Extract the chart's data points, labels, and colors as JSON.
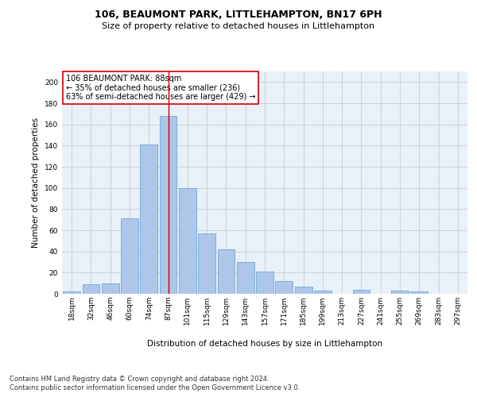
{
  "title": "106, BEAUMONT PARK, LITTLEHAMPTON, BN17 6PH",
  "subtitle": "Size of property relative to detached houses in Littlehampton",
  "xlabel": "Distribution of detached houses by size in Littlehampton",
  "ylabel": "Number of detached properties",
  "footnote1": "Contains HM Land Registry data © Crown copyright and database right 2024.",
  "footnote2": "Contains public sector information licensed under the Open Government Licence v3.0.",
  "annotation_title": "106 BEAUMONT PARK: 88sqm",
  "annotation_line2": "← 35% of detached houses are smaller (236)",
  "annotation_line3": "63% of semi-detached houses are larger (429) →",
  "bar_labels": [
    "18sqm",
    "32sqm",
    "46sqm",
    "60sqm",
    "74sqm",
    "87sqm",
    "101sqm",
    "115sqm",
    "129sqm",
    "143sqm",
    "157sqm",
    "171sqm",
    "185sqm",
    "199sqm",
    "213sqm",
    "227sqm",
    "241sqm",
    "255sqm",
    "269sqm",
    "283sqm",
    "297sqm"
  ],
  "bar_values": [
    2,
    9,
    10,
    71,
    141,
    168,
    100,
    57,
    42,
    30,
    21,
    12,
    7,
    3,
    0,
    4,
    0,
    3,
    2,
    0,
    0
  ],
  "bar_color": "#aec6e8",
  "bar_edge_color": "#5a9fd4",
  "highlight_bar_index": 5,
  "highlight_line_color": "#cc0000",
  "ylim": [
    0,
    210
  ],
  "yticks": [
    0,
    20,
    40,
    60,
    80,
    100,
    120,
    140,
    160,
    180,
    200
  ],
  "grid_color": "#cccccc",
  "bg_color": "#e8f0f8",
  "annotation_box_color": "#ffffff",
  "annotation_box_edge": "#cc0000",
  "title_fontsize": 9,
  "subtitle_fontsize": 8,
  "axis_label_fontsize": 7.5,
  "tick_fontsize": 6.5,
  "annotation_fontsize": 7,
  "footnote_fontsize": 6
}
